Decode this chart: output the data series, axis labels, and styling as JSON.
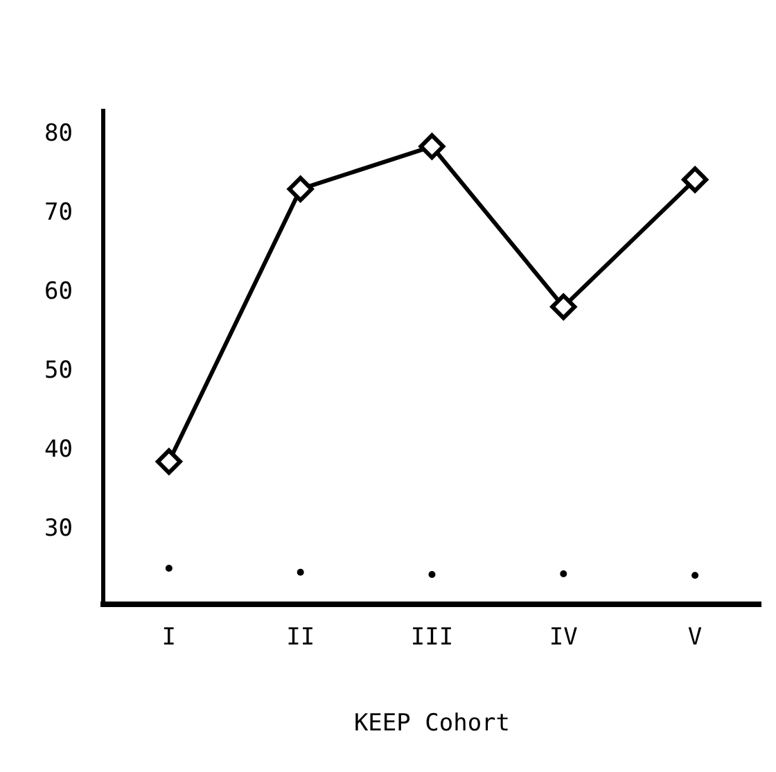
{
  "chart_data": {
    "type": "line",
    "xlabel": "KEEP Cohort",
    "categories": [
      "I",
      "II",
      "III",
      "IV",
      "V"
    ],
    "series": [
      {
        "color": "#000000",
        "values": [
          38.6,
          73.1,
          78.5,
          58.2,
          74.3
        ],
        "marker": "diamond"
      },
      {
        "type": "scatter",
        "color": "#000000",
        "values": [
          25.1,
          24.6,
          24.3,
          24.4,
          24.2
        ],
        "marker": "circle"
      }
    ],
    "ylim": [
      20.5,
      83
    ],
    "yticks": [
      30,
      40,
      50,
      60,
      70,
      80
    ],
    "grid": false,
    "legend": false,
    "line_style": "solid"
  }
}
